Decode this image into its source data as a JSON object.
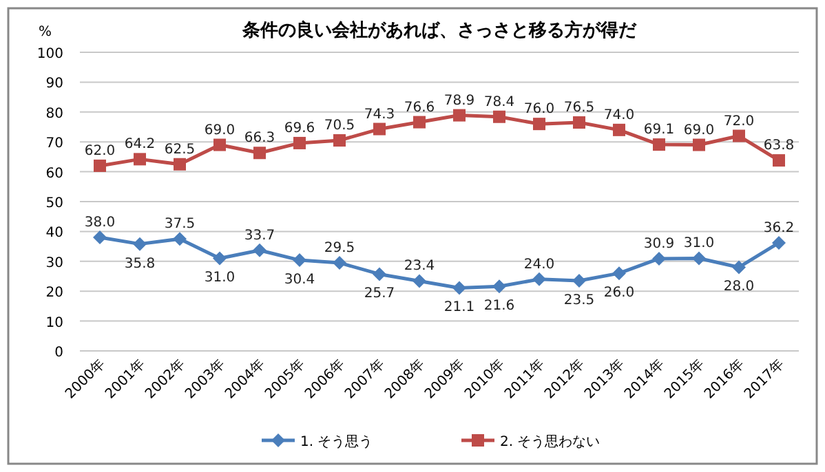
{
  "chart_data": {
    "type": "line",
    "title": "条件の良い会社があれば、さっさと移る方が得だ",
    "ylabel": "%",
    "categories": [
      "2000年",
      "2001年",
      "2002年",
      "2003年",
      "2004年",
      "2005年",
      "2006年",
      "2007年",
      "2008年",
      "2009年",
      "2010年",
      "2011年",
      "2012年",
      "2013年",
      "2014年",
      "2015年",
      "2016年",
      "2017年"
    ],
    "series": [
      {
        "name": "1. そう思う",
        "color": "#4a7ebb",
        "marker": "diamond",
        "values": [
          38.0,
          35.8,
          37.5,
          31.0,
          33.7,
          30.4,
          29.5,
          25.7,
          23.4,
          21.1,
          21.6,
          24.0,
          23.5,
          26.0,
          30.9,
          31.0,
          28.0,
          36.2
        ],
        "value_labels": [
          "38.0",
          "35.8",
          "37.5",
          "31.0",
          "33.7",
          "30.4",
          "29.5",
          "25.7",
          "23.4",
          "21.1",
          "21.6",
          "24.0",
          "23.5",
          "26.0",
          "30.9",
          "31.0",
          "28.0",
          "36.2"
        ]
      },
      {
        "name": "2. そう思わない",
        "color": "#be4b48",
        "marker": "square",
        "values": [
          62.0,
          64.2,
          62.5,
          69.0,
          66.3,
          69.6,
          70.5,
          74.3,
          76.6,
          78.9,
          78.4,
          76.0,
          76.5,
          74.0,
          69.1,
          69.0,
          72.0,
          63.8
        ],
        "value_labels": [
          "62.0",
          "64.2",
          "62.5",
          "69.0",
          "66.3",
          "69.6",
          "70.5",
          "74.3",
          "76.6",
          "78.9",
          "78.4",
          "76.0",
          "76.5",
          "74.0",
          "69.1",
          "69.0",
          "72.0",
          "63.8"
        ]
      }
    ],
    "ylim": [
      0,
      100
    ],
    "yticks": [
      0,
      10,
      20,
      30,
      40,
      50,
      60,
      70,
      80,
      90,
      100
    ],
    "grid": "y",
    "legend": "bottom"
  }
}
